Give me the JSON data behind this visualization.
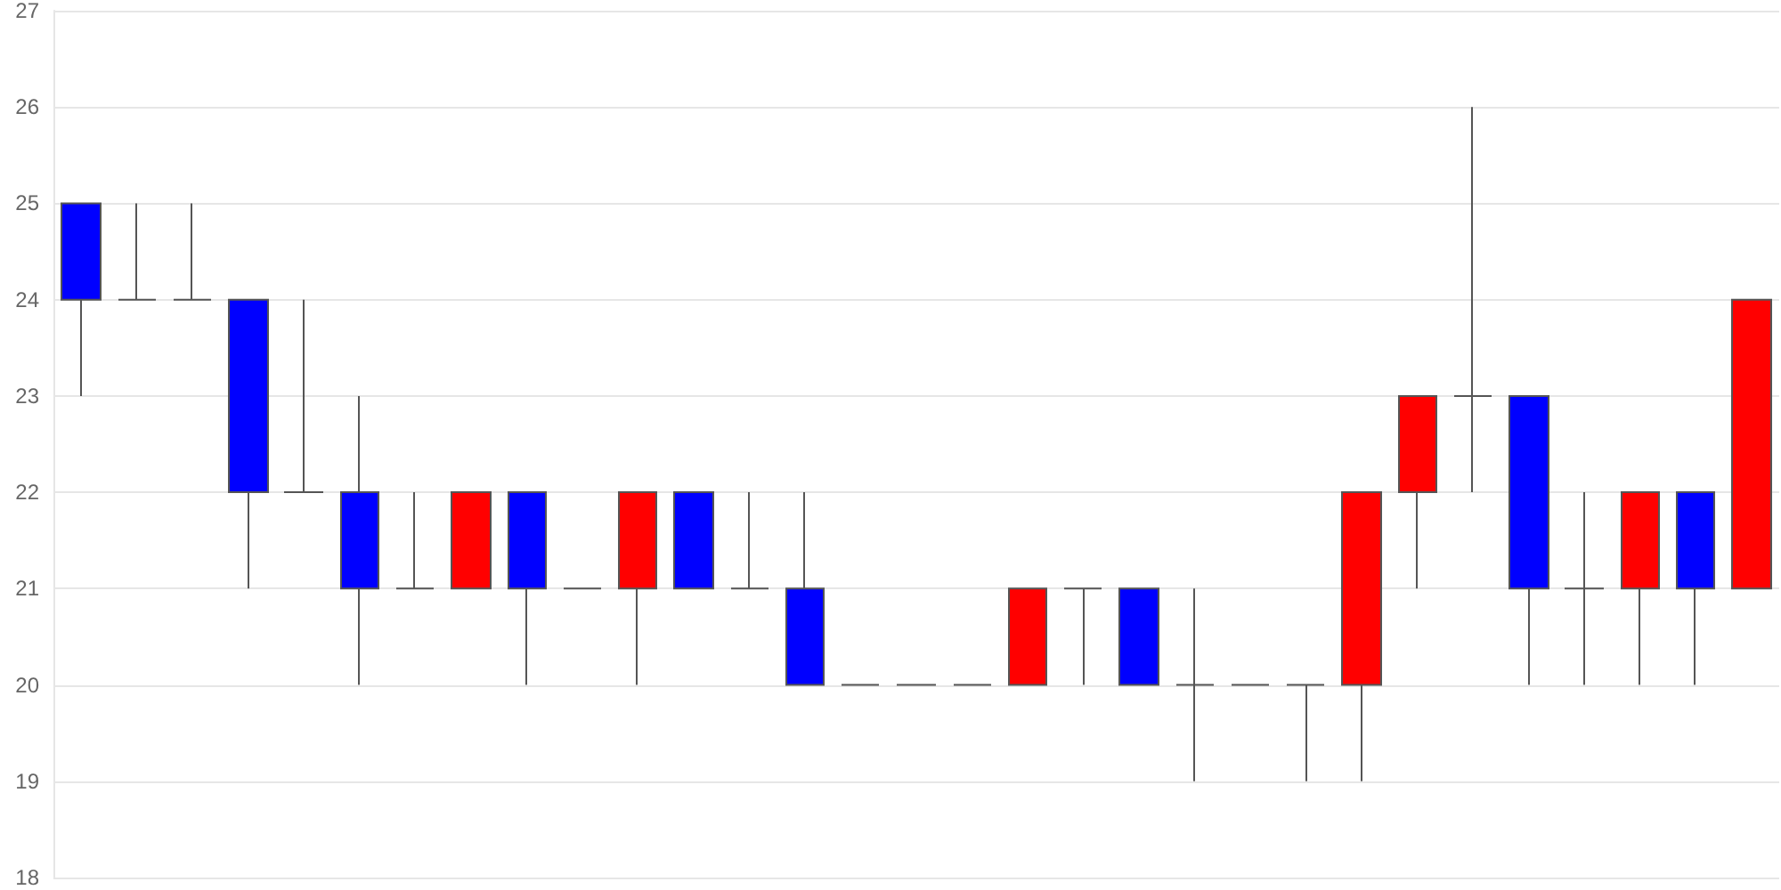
{
  "chart_data": {
    "type": "candlestick",
    "categories": [
      null,
      null,
      null,
      null,
      null,
      null,
      null,
      null,
      null,
      null,
      null,
      null,
      null,
      null,
      null,
      null,
      null,
      null,
      null,
      null,
      null,
      null,
      null,
      null,
      null,
      null,
      null,
      null,
      null,
      null,
      null
    ],
    "ohlc": [
      [
        25,
        25,
        23,
        24
      ],
      [
        24,
        25,
        24,
        24
      ],
      [
        24,
        25,
        24,
        24
      ],
      [
        24,
        24,
        21,
        22
      ],
      [
        22,
        24,
        22,
        22
      ],
      [
        22,
        23,
        20,
        21
      ],
      [
        21,
        22,
        21,
        21
      ],
      [
        21,
        22,
        21,
        22
      ],
      [
        22,
        22,
        20,
        21
      ],
      [
        21,
        21,
        21,
        21
      ],
      [
        21,
        22,
        20,
        22
      ],
      [
        22,
        22,
        21,
        21
      ],
      [
        21,
        22,
        21,
        21
      ],
      [
        21,
        22,
        20,
        20
      ],
      [
        20,
        20,
        20,
        20
      ],
      [
        20,
        20,
        20,
        20
      ],
      [
        20,
        20,
        20,
        20
      ],
      [
        20,
        21,
        20,
        21
      ],
      [
        21,
        21,
        20,
        21
      ],
      [
        21,
        21,
        20,
        20
      ],
      [
        20,
        21,
        19,
        20
      ],
      [
        20,
        20,
        20,
        20
      ],
      [
        20,
        20,
        19,
        20
      ],
      [
        20,
        22,
        19,
        22
      ],
      [
        22,
        23,
        21,
        23
      ],
      [
        23,
        26,
        22,
        23
      ],
      [
        23,
        23,
        20,
        21
      ],
      [
        21,
        22,
        20,
        21
      ],
      [
        21,
        22,
        20,
        22
      ],
      [
        22,
        22,
        20,
        21
      ],
      [
        21,
        24,
        21,
        24
      ]
    ],
    "colors": [
      "#0000ff",
      "#555555",
      "#555555",
      "#0000ff",
      "#555555",
      "#0000ff",
      "#555555",
      "#ff0000",
      "#0000ff",
      "#555555",
      "#ff0000",
      "#0000ff",
      "#555555",
      "#0000ff",
      "#555555",
      "#555555",
      "#555555",
      "#ff0000",
      "#555555",
      "#0000ff",
      "#555555",
      "#555555",
      "#555555",
      "#ff0000",
      "#ff0000",
      "#555555",
      "#0000ff",
      "#555555",
      "#ff0000",
      "#0000ff",
      "#ff0000"
    ],
    "ylim": [
      18,
      27
    ],
    "yticks": [
      18,
      19,
      20,
      21,
      22,
      23,
      24,
      25,
      26,
      27
    ],
    "grid": true,
    "tick_labels": "y"
  }
}
